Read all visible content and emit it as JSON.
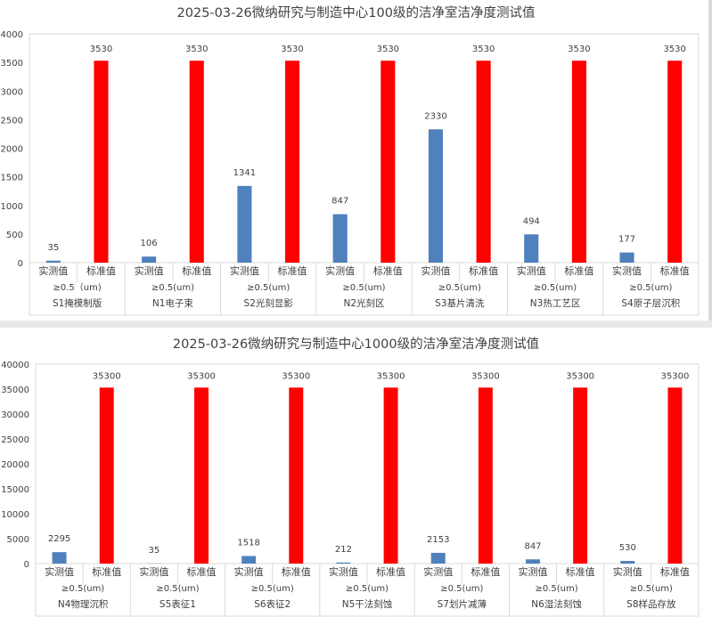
{
  "colors": {
    "measured": "#4f81bd",
    "standard": "#ff0000",
    "grid": "#d9d9d9"
  },
  "chart_data": [
    {
      "type": "bar",
      "title": "2025-03-26微纳研究与制造中心100级的洁净室洁净度测试值",
      "ylim": [
        0,
        4000
      ],
      "yticks": [
        0,
        500,
        1000,
        1500,
        2000,
        2500,
        3000,
        3500,
        4000
      ],
      "grid": false,
      "groups": [
        {
          "name": "S1掩模制版",
          "sub": "≥0.5（um)",
          "measured": 35,
          "standard": 3530
        },
        {
          "name": "N1电子束",
          "sub": "≥0.5(um)",
          "measured": 106,
          "standard": 3530
        },
        {
          "name": "S2光刻显影",
          "sub": "≥0.5(um)",
          "measured": 1341,
          "standard": 3530
        },
        {
          "name": "N2光刻区",
          "sub": "≥0.5(um)",
          "measured": 847,
          "standard": 3530
        },
        {
          "name": "S3基片清洗",
          "sub": "≥0.5(um)",
          "measured": 2330,
          "standard": 3530
        },
        {
          "name": "N3热工艺区",
          "sub": "≥0.5(um)",
          "measured": 494,
          "standard": 3530
        },
        {
          "name": "S4原子层沉积",
          "sub": "≥0.5(um)",
          "measured": 177,
          "standard": 3530
        }
      ],
      "series_labels": [
        "实测值",
        "标准值"
      ]
    },
    {
      "type": "bar",
      "title": "2025-03-26微纳研究与制造中心1000级的洁净室洁净度测试值",
      "ylim": [
        0,
        40000
      ],
      "yticks": [
        0,
        5000,
        10000,
        15000,
        20000,
        25000,
        30000,
        35000,
        40000
      ],
      "grid": false,
      "groups": [
        {
          "name": "N4物理沉积",
          "sub": "≥0.5(um)",
          "measured": 2295,
          "standard": 35300
        },
        {
          "name": "S5表征1",
          "sub": "≥0.5(um)",
          "measured": 35,
          "standard": 35300
        },
        {
          "name": "S6表征2",
          "sub": "≥0.5(um)",
          "measured": 1518,
          "standard": 35300
        },
        {
          "name": "N5干法刻蚀",
          "sub": "≥0.5(um)",
          "measured": 212,
          "standard": 35300
        },
        {
          "name": "S7划片减薄",
          "sub": "≥0.5(um)",
          "measured": 2153,
          "standard": 35300
        },
        {
          "name": "N6湿法刻蚀",
          "sub": "≥0.5(um)",
          "measured": 847,
          "standard": 35300
        },
        {
          "name": "S8样品存放",
          "sub": "≥0.5(um)",
          "measured": 530,
          "standard": 35300
        }
      ],
      "series_labels": [
        "实测值",
        "标准值"
      ]
    }
  ]
}
